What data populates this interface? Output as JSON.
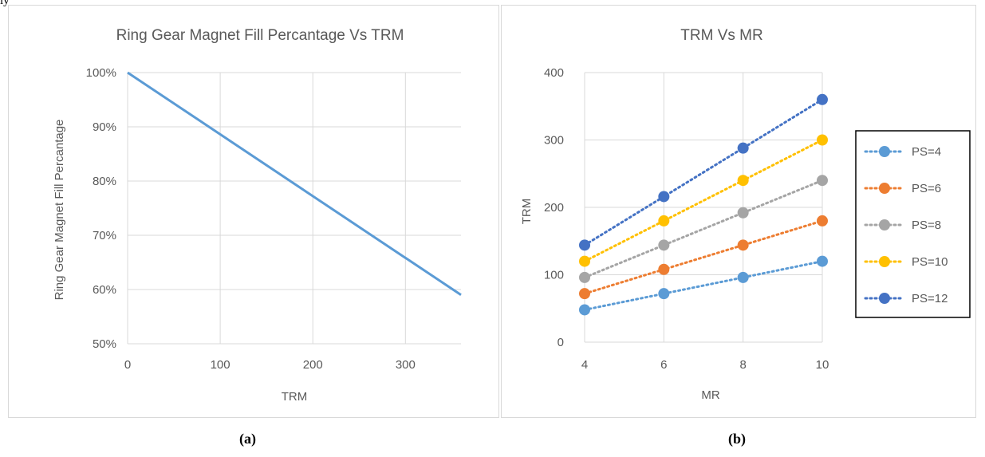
{
  "page": {
    "top_fragment": "ly",
    "captions": {
      "a": "(a)",
      "b": "(b)"
    }
  },
  "colors": {
    "grid": "#d9d9d9",
    "axis_text": "#595959",
    "line_a": "#5b9bd5"
  },
  "chart_data": [
    {
      "type": "line",
      "title": "Ring Gear Magnet Fill Percantage Vs TRM",
      "xlabel": "TRM",
      "ylabel": "Ring Gear Magnet Fill Percantage",
      "xlim": [
        0,
        360
      ],
      "ylim": [
        0.5,
        1.0
      ],
      "x_ticks": [
        0,
        100,
        200,
        300
      ],
      "x_tick_labels": [
        "0",
        "100",
        "200",
        "300"
      ],
      "y_ticks": [
        0.5,
        0.6,
        0.7,
        0.8,
        0.9,
        1.0
      ],
      "y_tick_labels": [
        "50%",
        "60%",
        "70%",
        "80%",
        "90%",
        "100%"
      ],
      "grid": true,
      "legend": "none",
      "series": [
        {
          "color": "#5b9bd5",
          "x": [
            0,
            360
          ],
          "y": [
            1.0,
            0.59
          ]
        }
      ]
    },
    {
      "type": "line",
      "title": "TRM Vs MR",
      "xlabel": "MR",
      "ylabel": "TRM",
      "xlim": [
        4,
        10
      ],
      "ylim": [
        0,
        400
      ],
      "x_ticks": [
        4,
        6,
        8,
        10
      ],
      "x_tick_labels": [
        "4",
        "6",
        "8",
        "10"
      ],
      "y_ticks": [
        0,
        100,
        200,
        300,
        400
      ],
      "y_tick_labels": [
        "0",
        "100",
        "200",
        "300",
        "400"
      ],
      "grid": true,
      "legend": "right",
      "line_style": "dotted",
      "x": [
        4,
        6,
        8,
        10
      ],
      "series": [
        {
          "name": "PS=4",
          "color": "#5b9bd5",
          "values": [
            48,
            72,
            96,
            120
          ]
        },
        {
          "name": "PS=6",
          "color": "#ed7d31",
          "values": [
            72,
            108,
            144,
            180
          ]
        },
        {
          "name": "PS=8",
          "color": "#a5a5a5",
          "values": [
            96,
            144,
            192,
            240
          ]
        },
        {
          "name": "PS=10",
          "color": "#ffc000",
          "values": [
            120,
            180,
            240,
            300
          ]
        },
        {
          "name": "PS=12",
          "color": "#4472c4",
          "values": [
            144,
            216,
            288,
            360
          ]
        }
      ]
    }
  ]
}
